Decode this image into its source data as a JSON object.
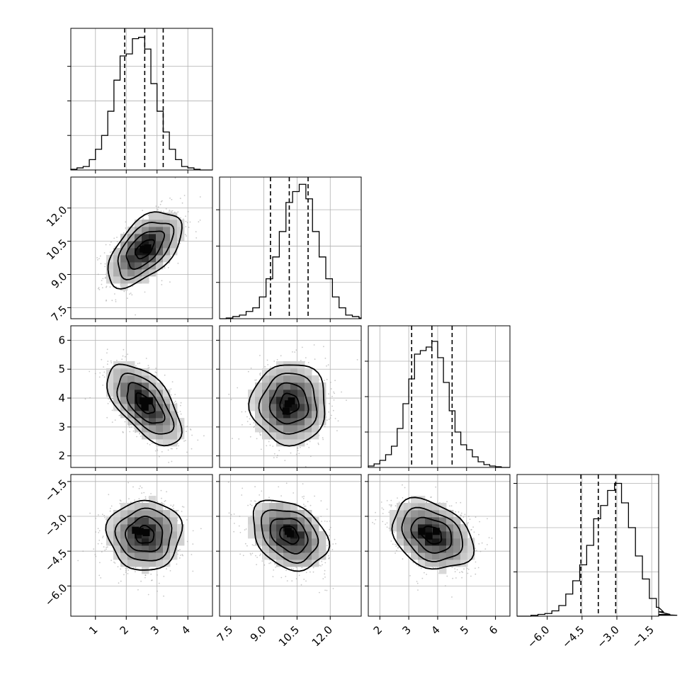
{
  "chart_data": {
    "type": "corner",
    "grid": true,
    "parameters": [
      {
        "range": [
          0.2,
          4.8
        ],
        "ticks": [
          1,
          2,
          3,
          4
        ],
        "tick_labels": [
          "1",
          "2",
          "3",
          "4"
        ],
        "quantiles": [
          1.95,
          2.6,
          3.2
        ],
        "hist": {
          "x_start": 0.2,
          "bin_width": 0.2,
          "counts": [
            1,
            3,
            5,
            15,
            30,
            50,
            85,
            130,
            165,
            168,
            190,
            192,
            175,
            125,
            85,
            55,
            30,
            15,
            5,
            3,
            1,
            0,
            0
          ],
          "ymax": 205
        },
        "marginal_ticks": [
          50,
          100,
          150
        ]
      },
      {
        "range": [
          7.0,
          13.4
        ],
        "ticks": [
          7.5,
          9.0,
          10.5,
          12.0
        ],
        "tick_labels": [
          "7.5",
          "9.0",
          "10.5",
          "12.0"
        ],
        "quantiles": [
          9.3,
          10.15,
          11.0
        ],
        "hist": {
          "x_start": 7.0,
          "bin_width": 0.3,
          "counts": [
            0,
            1,
            3,
            5,
            10,
            15,
            30,
            55,
            85,
            120,
            160,
            175,
            185,
            165,
            120,
            85,
            55,
            30,
            15,
            5,
            3,
            1
          ],
          "ymax": 195
        },
        "marginal_ticks": [
          50,
          100,
          150
        ]
      },
      {
        "range": [
          1.6,
          6.5
        ],
        "ticks": [
          2,
          3,
          4,
          5,
          6
        ],
        "tick_labels": [
          "2",
          "3",
          "4",
          "5",
          "6"
        ],
        "quantiles": [
          3.1,
          3.8,
          4.5
        ],
        "hist": {
          "x_start": 1.6,
          "bin_width": 0.2,
          "counts": [
            2,
            5,
            10,
            18,
            30,
            55,
            90,
            125,
            160,
            165,
            170,
            178,
            155,
            120,
            80,
            50,
            32,
            25,
            15,
            8,
            4,
            2,
            1,
            0,
            0
          ],
          "ymax": 200
        },
        "marginal_ticks": [
          50,
          100,
          150
        ]
      },
      {
        "range": [
          -7.3,
          -1.2
        ],
        "ticks": [
          -6.0,
          -4.5,
          -3.0,
          -1.5
        ],
        "tick_labels": [
          "−6.0",
          "−4.5",
          "−3.0",
          "−1.5"
        ],
        "quantiles": [
          -4.55,
          -3.8,
          -3.05
        ],
        "hist": {
          "x_start": -7.3,
          "bin_width": 0.3,
          "counts": [
            0,
            0,
            1,
            2,
            3,
            6,
            12,
            25,
            40,
            58,
            80,
            110,
            125,
            142,
            150,
            128,
            100,
            68,
            42,
            20,
            10,
            5,
            2,
            1
          ],
          "ymax": 160
        },
        "marginal_ticks": [
          50,
          100,
          150
        ]
      }
    ],
    "pairs": [
      {
        "row": 1,
        "col": 0,
        "mean": [
          2.6,
          10.15
        ],
        "sd": [
          0.6,
          0.85
        ],
        "rho": 0.55,
        "core": [
          [
            2.55,
            10.15
          ],
          [
            2.65,
            10.1
          ],
          [
            2.7,
            10.2
          ]
        ]
      },
      {
        "row": 2,
        "col": 0,
        "mean": [
          2.6,
          3.8
        ],
        "sd": [
          0.6,
          0.7
        ],
        "rho": -0.6,
        "core": [
          [
            2.55,
            3.9
          ],
          [
            2.75,
            3.9
          ],
          [
            2.6,
            3.7
          ]
        ]
      },
      {
        "row": 2,
        "col": 1,
        "mean": [
          10.15,
          3.8
        ],
        "sd": [
          0.85,
          0.7
        ],
        "rho": 0.0,
        "core": [
          [
            10.1,
            3.8
          ],
          [
            10.25,
            3.9
          ],
          [
            10.0,
            3.55
          ]
        ]
      },
      {
        "row": 3,
        "col": 0,
        "mean": [
          2.6,
          -3.8
        ],
        "sd": [
          0.6,
          0.75
        ],
        "rho": 0.0,
        "core": [
          [
            2.45,
            -3.65
          ],
          [
            2.65,
            -3.7
          ],
          [
            2.3,
            -3.6
          ]
        ]
      },
      {
        "row": 3,
        "col": 1,
        "mean": [
          10.15,
          -3.8
        ],
        "sd": [
          0.85,
          0.75
        ],
        "rho": -0.3,
        "core": [
          [
            10.1,
            -3.65
          ],
          [
            10.2,
            -3.75
          ]
        ]
      },
      {
        "row": 3,
        "col": 2,
        "mean": [
          3.8,
          -3.8
        ],
        "sd": [
          0.7,
          0.75
        ],
        "rho": -0.3,
        "core": [
          [
            3.45,
            -3.65
          ],
          [
            3.95,
            -3.65
          ],
          [
            3.7,
            -3.85
          ]
        ]
      }
    ]
  }
}
